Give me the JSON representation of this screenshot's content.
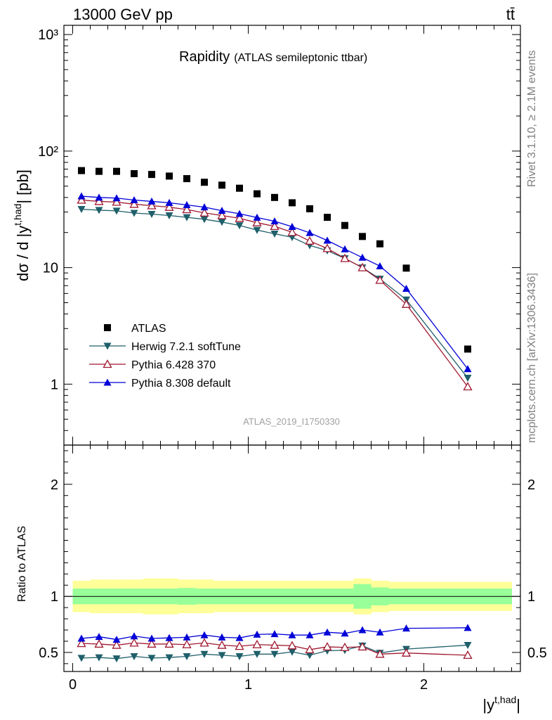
{
  "header": {
    "process": "13000 GeV pp",
    "channel": "tt̄"
  },
  "side_labels": {
    "rivet": "Rivet 3.1.10, ≥ 2.1M events",
    "mcplots": "mcplots.cern.ch [arXiv:1306.3436]"
  },
  "title": {
    "main": "Rapidity",
    "sub": "(ATLAS semileptonic ttbar)"
  },
  "ylabel_top": "dσ / d |y",
  "ylabel_top_sup": "t,had",
  "ylabel_top_tail": "| [pb]",
  "ylabel_bottom": "Ratio to ATLAS",
  "xlabel": "|y",
  "xlabel_sup": "t,had",
  "xlabel_tail": "|",
  "analysis_id": "ATLAS_2019_I1750330",
  "colors": {
    "data": "#000000",
    "herwig": "#1f5f6a",
    "pythia6": "#a01830",
    "pythia8": "#0000d8",
    "band_inner": "#99ff99",
    "band_outer": "#ffff99"
  },
  "chart_data": [
    {
      "type": "scatter",
      "panel": "main",
      "yscale": "log",
      "ylim": [
        0.3,
        1200
      ],
      "xlim": [
        -0.05,
        2.55
      ],
      "yticks": [
        1,
        10,
        100,
        1000
      ],
      "ytick_labels": [
        "1",
        "10",
        "10²",
        "10³"
      ],
      "xticks": [
        0,
        1,
        2
      ],
      "xtick_labels": [
        "0",
        "1",
        "2"
      ],
      "bin_edges": [
        0,
        0.1,
        0.2,
        0.3,
        0.4,
        0.5,
        0.6,
        0.7,
        0.8,
        0.9,
        1.0,
        1.1,
        1.2,
        1.3,
        1.4,
        1.5,
        1.6,
        1.7,
        1.8,
        2.0,
        2.5
      ],
      "x": [
        0.05,
        0.15,
        0.25,
        0.35,
        0.45,
        0.55,
        0.65,
        0.75,
        0.85,
        0.95,
        1.05,
        1.15,
        1.25,
        1.35,
        1.45,
        1.55,
        1.65,
        1.75,
        1.9,
        2.25
      ],
      "legend_position": "bottom-left",
      "series": [
        {
          "name": "ATLAS",
          "marker": "square",
          "values": [
            68,
            67,
            67,
            64,
            63,
            61,
            58,
            54,
            51,
            48,
            43,
            40,
            36,
            32,
            27,
            23,
            18.5,
            16,
            9.9,
            2.0
          ]
        },
        {
          "name": "Herwig 7.2.1 softTune",
          "marker": "triangle-down-filled",
          "values": [
            31.7,
            31.1,
            30.7,
            29.4,
            28.8,
            28.0,
            27.0,
            26.0,
            24.6,
            23.0,
            21.0,
            19.5,
            18.2,
            15.5,
            14.0,
            12.0,
            10.0,
            8.0,
            5.3,
            1.13
          ]
        },
        {
          "name": "Pythia 6.428 370",
          "marker": "triangle-up-open",
          "values": [
            38.0,
            37.0,
            36.5,
            35.0,
            34.0,
            33.0,
            31.5,
            29.5,
            28.0,
            26.5,
            24.3,
            22.6,
            20.1,
            16.9,
            14.6,
            12.0,
            10.0,
            7.8,
            4.85,
            0.95
          ]
        },
        {
          "name": "Pythia 8.308 default",
          "marker": "triangle-up-filled",
          "values": [
            41.0,
            40.0,
            39.5,
            38.0,
            37.0,
            36.0,
            34.5,
            33.0,
            30.8,
            29.0,
            26.9,
            25.0,
            22.4,
            19.9,
            17.1,
            14.4,
            12.2,
            10.3,
            6.6,
            1.35
          ]
        }
      ]
    },
    {
      "type": "line",
      "panel": "ratio",
      "ylim": [
        0.33,
        2.35
      ],
      "yticks": [
        0.5,
        1,
        2
      ],
      "ytick_labels": [
        "0.5",
        "1",
        "2"
      ],
      "xlim": [
        -0.05,
        2.55
      ],
      "x": [
        0.05,
        0.15,
        0.25,
        0.35,
        0.45,
        0.55,
        0.65,
        0.75,
        0.85,
        0.95,
        1.05,
        1.15,
        1.25,
        1.35,
        1.45,
        1.55,
        1.65,
        1.75,
        1.9,
        2.25
      ],
      "band_inner_halfwidth": [
        0.07,
        0.07,
        0.07,
        0.07,
        0.07,
        0.07,
        0.075,
        0.07,
        0.07,
        0.07,
        0.07,
        0.07,
        0.07,
        0.07,
        0.07,
        0.07,
        0.11,
        0.08,
        0.07,
        0.07
      ],
      "band_outer_halfwidth": [
        0.14,
        0.15,
        0.15,
        0.15,
        0.16,
        0.16,
        0.15,
        0.15,
        0.14,
        0.14,
        0.14,
        0.14,
        0.14,
        0.14,
        0.14,
        0.14,
        0.16,
        0.14,
        0.13,
        0.13
      ],
      "series": [
        {
          "name": "Herwig 7.2.1 softTune",
          "values": [
            0.45,
            0.455,
            0.445,
            0.465,
            0.45,
            0.455,
            0.465,
            0.485,
            0.475,
            0.465,
            0.485,
            0.485,
            0.505,
            0.475,
            0.515,
            0.52,
            0.56,
            0.495,
            0.53,
            0.565
          ]
        },
        {
          "name": "Pythia 6.428 370",
          "values": [
            0.58,
            0.575,
            0.565,
            0.585,
            0.575,
            0.575,
            0.57,
            0.585,
            0.565,
            0.555,
            0.57,
            0.565,
            0.56,
            0.525,
            0.55,
            0.545,
            0.55,
            0.485,
            0.495,
            0.475
          ]
        },
        {
          "name": "Pythia 8.308 default",
          "values": [
            0.625,
            0.64,
            0.615,
            0.645,
            0.625,
            0.63,
            0.635,
            0.655,
            0.635,
            0.63,
            0.66,
            0.665,
            0.655,
            0.655,
            0.68,
            0.67,
            0.7,
            0.68,
            0.715,
            0.72
          ]
        }
      ]
    }
  ]
}
